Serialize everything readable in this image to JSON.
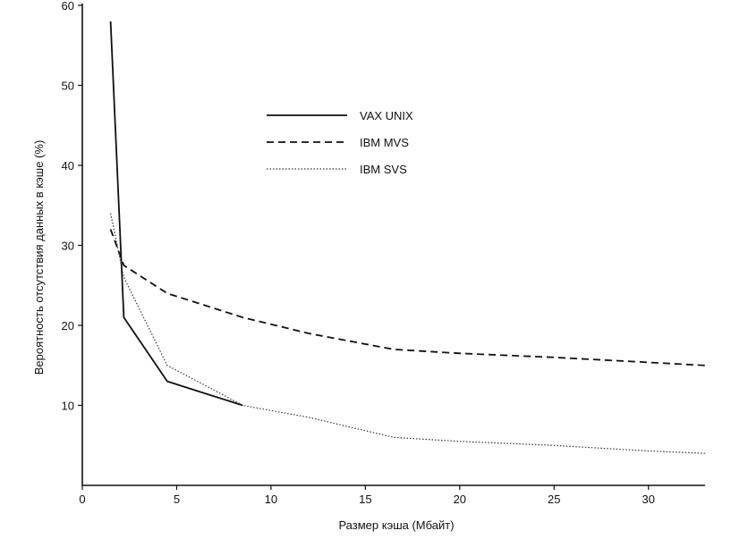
{
  "chart_data": {
    "type": "line",
    "title": "",
    "xlabel": "Размер кэша (Мбайт)",
    "ylabel": "Вероятность отсутствия данных в кэше  (%)",
    "xlim": [
      0,
      33
    ],
    "ylim": [
      0,
      60
    ],
    "x_ticks": [
      0,
      5,
      10,
      15,
      20,
      25,
      30
    ],
    "y_ticks": [
      10,
      20,
      30,
      40,
      50,
      60
    ],
    "grid": false,
    "legend_position": "top-center",
    "series": [
      {
        "name": "VAX UNIX",
        "style": "solid",
        "color": "#111111",
        "points": [
          [
            1.5,
            58
          ],
          [
            2.2,
            21
          ],
          [
            4.5,
            13
          ],
          [
            6.5,
            11.5
          ],
          [
            8.5,
            10
          ]
        ]
      },
      {
        "name": "IBM MVS",
        "style": "dashed",
        "color": "#111111",
        "points": [
          [
            1.5,
            32
          ],
          [
            2.2,
            27.5
          ],
          [
            4.5,
            24
          ],
          [
            6.5,
            22.5
          ],
          [
            8.5,
            21
          ],
          [
            12,
            19
          ],
          [
            16.5,
            17
          ],
          [
            20,
            16.5
          ],
          [
            25,
            16
          ],
          [
            33,
            15
          ]
        ]
      },
      {
        "name": "IBM SVS",
        "style": "dotted",
        "color": "#333333",
        "points": [
          [
            1.5,
            34
          ],
          [
            2.2,
            26
          ],
          [
            4.5,
            15
          ],
          [
            6.5,
            12.5
          ],
          [
            8.5,
            10
          ],
          [
            12,
            8.5
          ],
          [
            16.5,
            6
          ],
          [
            20,
            5.5
          ],
          [
            25,
            5
          ],
          [
            30,
            4.3
          ],
          [
            33,
            4
          ]
        ]
      }
    ]
  }
}
